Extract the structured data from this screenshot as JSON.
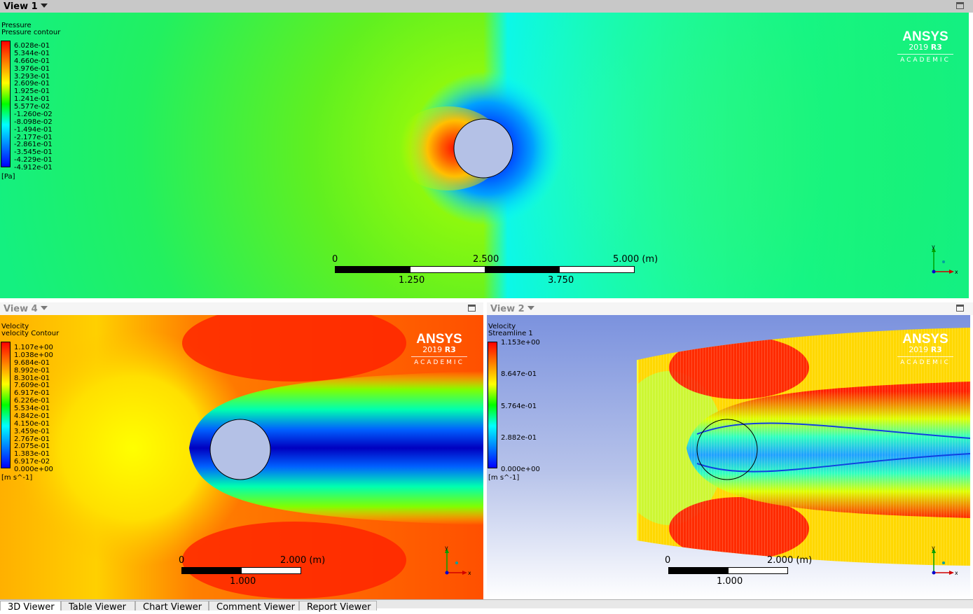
{
  "views": {
    "top": {
      "title": "View 1",
      "legend_title": "Pressure",
      "legend_subtitle": "Pressure contour",
      "unit": "[Pa]",
      "levels": [
        "6.028e-01",
        "5.344e-01",
        "4.660e-01",
        "3.976e-01",
        "3.293e-01",
        "2.609e-01",
        "1.925e-01",
        "1.241e-01",
        "5.577e-02",
        "-1.260e-02",
        "-8.098e-02",
        "-1.494e-01",
        "-2.177e-01",
        "-2.861e-01",
        "-3.545e-01",
        "-4.229e-01",
        "-4.912e-01"
      ],
      "scale": {
        "top_labels": [
          "0",
          "2.500",
          "5.000  (m)"
        ],
        "bottom_labels": [
          "1.250",
          "3.750"
        ]
      }
    },
    "bottom_left": {
      "title": "View 4",
      "legend_title": "Velocity",
      "legend_subtitle": "velocity Contour",
      "unit": "[m s^-1]",
      "levels": [
        "1.107e+00",
        "1.038e+00",
        "9.684e-01",
        "8.992e-01",
        "8.301e-01",
        "7.609e-01",
        "6.917e-01",
        "6.226e-01",
        "5.534e-01",
        "4.842e-01",
        "4.150e-01",
        "3.459e-01",
        "2.767e-01",
        "2.075e-01",
        "1.383e-01",
        "6.917e-02",
        "0.000e+00"
      ],
      "scale": {
        "top_labels": [
          "0",
          "2.000  (m)"
        ],
        "bottom_labels": [
          "1.000"
        ]
      }
    },
    "bottom_right": {
      "title": "View 2",
      "legend_title": "Velocity",
      "legend_subtitle": "Streamline 1",
      "unit": "[m s^-1]",
      "levels": [
        "1.153e+00",
        "8.647e-01",
        "5.764e-01",
        "2.882e-01",
        "0.000e+00"
      ],
      "scale": {
        "top_labels": [
          "0",
          "2.000  (m)"
        ],
        "bottom_labels": [
          "1.000"
        ]
      }
    }
  },
  "brand": {
    "name": "ANSYS",
    "version": "2019",
    "release": "R3",
    "edition": "ACADEMIC"
  },
  "axes": {
    "x": "x",
    "y": "y"
  },
  "tabs": [
    "3D Viewer",
    "Table Viewer",
    "Chart Viewer",
    "Comment Viewer",
    "Report Viewer"
  ],
  "colors": {
    "pressure_max": "#ff0000",
    "pressure_min": "#0000ff",
    "circle": "#b4c1e6"
  }
}
